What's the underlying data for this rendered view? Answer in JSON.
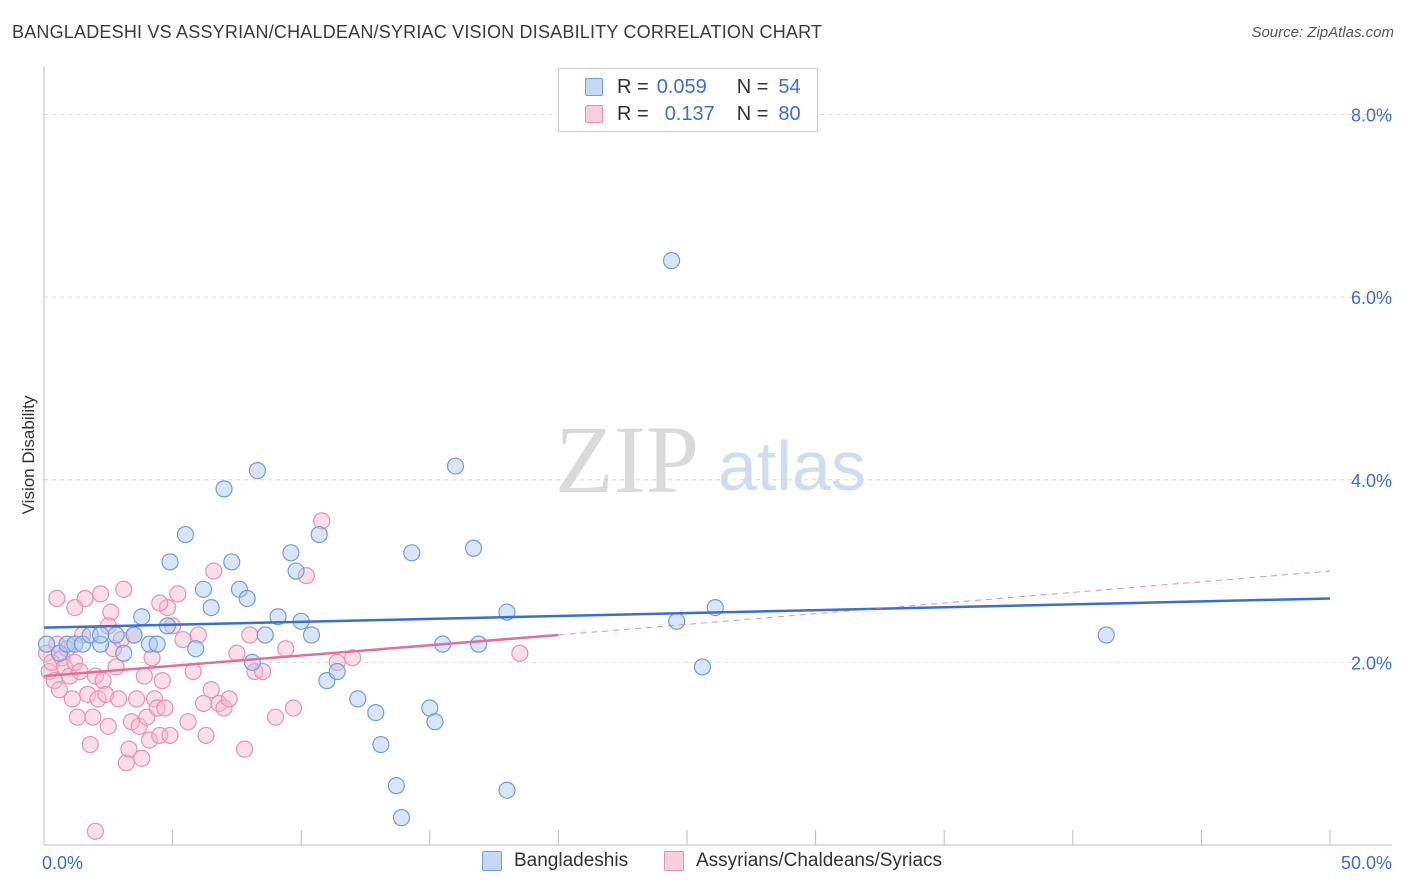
{
  "title": "BANGLADESHI VS ASSYRIAN/CHALDEAN/SYRIAC VISION DISABILITY CORRELATION CHART",
  "source": "Source: ZipAtlas.com",
  "watermark": {
    "zip": "ZIP",
    "atlas": "atlas"
  },
  "colors": {
    "blue": "#3a6fcf",
    "blue_fill": "#aac8f2",
    "blue_stroke": "#6f9ee0",
    "pink": "#e0709a",
    "pink_fill": "#f6b8cc",
    "pink_stroke": "#ec8fb0",
    "grid": "#dcdcdc",
    "axis_text": "#3a6fcf"
  },
  "legend": {
    "rows": [
      {
        "r_label": "R =",
        "r_value": "0.059",
        "n_label": "N =",
        "n_value": "54"
      },
      {
        "r_label": "R =",
        "r_value": "0.137",
        "n_label": "N =",
        "n_value": "80"
      }
    ]
  },
  "bottom_legend": {
    "series1": "Bangladeshis",
    "series2": "Assyrians/Chaldeans/Syriacs"
  },
  "chart_data": {
    "type": "scatter",
    "title": "BANGLADESHI VS ASSYRIAN/CHALDEAN/SYRIAC VISION DISABILITY CORRELATION CHART",
    "xlabel": "",
    "ylabel": "Vision Disability",
    "xlim": [
      0,
      50
    ],
    "ylim": [
      0,
      8.4
    ],
    "x_tick_labels": [
      "0.0%",
      "50.0%"
    ],
    "y_ticks": [
      2,
      4,
      6,
      8
    ],
    "y_tick_labels": [
      "2.0%",
      "4.0%",
      "6.0%",
      "8.0%"
    ],
    "grid": true,
    "legend_position": "top-center",
    "series": [
      {
        "name": "Bangladeshis",
        "R": 0.059,
        "N": 54,
        "trend": {
          "x": [
            0,
            50
          ],
          "y": [
            2.38,
            2.7
          ],
          "dashed_to": 50
        },
        "points": [
          [
            0.1,
            2.2
          ],
          [
            0.6,
            2.1
          ],
          [
            0.9,
            2.2
          ],
          [
            1.2,
            2.2
          ],
          [
            1.5,
            2.2
          ],
          [
            1.8,
            2.3
          ],
          [
            2.2,
            2.2
          ],
          [
            2.8,
            2.3
          ],
          [
            2.2,
            2.3
          ],
          [
            3.1,
            2.1
          ],
          [
            3.5,
            2.3
          ],
          [
            4.1,
            2.2
          ],
          [
            4.4,
            2.2
          ],
          [
            3.8,
            2.5
          ],
          [
            5.9,
            2.15
          ],
          [
            4.8,
            2.4
          ],
          [
            4.9,
            3.1
          ],
          [
            5.5,
            3.4
          ],
          [
            6.2,
            2.8
          ],
          [
            6.5,
            2.6
          ],
          [
            7.0,
            3.9
          ],
          [
            7.3,
            3.1
          ],
          [
            7.6,
            2.8
          ],
          [
            7.9,
            2.7
          ],
          [
            8.1,
            2.0
          ],
          [
            8.3,
            4.1
          ],
          [
            8.6,
            2.3
          ],
          [
            9.1,
            2.5
          ],
          [
            9.6,
            3.2
          ],
          [
            9.8,
            3.0
          ],
          [
            10.0,
            2.45
          ],
          [
            10.4,
            2.3
          ],
          [
            10.7,
            3.4
          ],
          [
            11.0,
            1.8
          ],
          [
            11.4,
            1.9
          ],
          [
            12.2,
            1.6
          ],
          [
            12.9,
            1.45
          ],
          [
            13.1,
            1.1
          ],
          [
            13.7,
            0.65
          ],
          [
            13.9,
            0.3
          ],
          [
            14.3,
            3.2
          ],
          [
            15.0,
            1.5
          ],
          [
            15.2,
            1.35
          ],
          [
            15.5,
            2.2
          ],
          [
            16.0,
            4.15
          ],
          [
            16.7,
            3.25
          ],
          [
            16.9,
            2.2
          ],
          [
            18.0,
            2.55
          ],
          [
            18.0,
            0.6
          ],
          [
            24.4,
            6.4
          ],
          [
            24.6,
            2.45
          ],
          [
            25.6,
            1.95
          ],
          [
            26.1,
            2.6
          ],
          [
            41.3,
            2.3
          ]
        ]
      },
      {
        "name": "Assyrians/Chaldeans/Syriacs",
        "R": 0.137,
        "N": 80,
        "trend": {
          "x": [
            0,
            20
          ],
          "y": [
            1.85,
            2.3
          ],
          "dashed_to": 50,
          "dashed_end_y": 3.0
        },
        "points": [
          [
            0.1,
            2.1
          ],
          [
            0.2,
            1.9
          ],
          [
            0.3,
            2.0
          ],
          [
            0.4,
            1.8
          ],
          [
            0.5,
            2.2
          ],
          [
            0.6,
            1.7
          ],
          [
            0.7,
            2.05
          ],
          [
            0.8,
            1.95
          ],
          [
            0.9,
            2.15
          ],
          [
            1.0,
            1.85
          ],
          [
            1.1,
            1.6
          ],
          [
            1.2,
            2.0
          ],
          [
            1.3,
            1.4
          ],
          [
            1.4,
            1.9
          ],
          [
            1.5,
            2.3
          ],
          [
            1.6,
            2.7
          ],
          [
            1.7,
            1.65
          ],
          [
            1.8,
            1.1
          ],
          [
            1.9,
            1.4
          ],
          [
            2.0,
            1.85
          ],
          [
            2.1,
            1.6
          ],
          [
            2.2,
            2.75
          ],
          [
            2.3,
            1.8
          ],
          [
            2.4,
            1.65
          ],
          [
            2.5,
            1.3
          ],
          [
            2.6,
            2.55
          ],
          [
            2.7,
            2.15
          ],
          [
            2.8,
            1.95
          ],
          [
            2.9,
            1.6
          ],
          [
            3.0,
            2.25
          ],
          [
            3.1,
            2.8
          ],
          [
            3.2,
            0.9
          ],
          [
            3.3,
            1.05
          ],
          [
            3.4,
            1.35
          ],
          [
            3.5,
            2.3
          ],
          [
            3.6,
            1.6
          ],
          [
            3.7,
            1.3
          ],
          [
            3.8,
            0.95
          ],
          [
            3.9,
            1.85
          ],
          [
            4.0,
            1.4
          ],
          [
            4.1,
            1.15
          ],
          [
            4.2,
            2.05
          ],
          [
            4.3,
            1.6
          ],
          [
            4.4,
            1.5
          ],
          [
            4.5,
            1.2
          ],
          [
            4.6,
            1.8
          ],
          [
            4.7,
            1.5
          ],
          [
            4.8,
            2.6
          ],
          [
            4.9,
            1.2
          ],
          [
            5.0,
            2.4
          ],
          [
            5.2,
            2.75
          ],
          [
            5.4,
            2.25
          ],
          [
            5.6,
            1.35
          ],
          [
            5.8,
            1.9
          ],
          [
            6.0,
            2.3
          ],
          [
            6.2,
            1.55
          ],
          [
            6.3,
            1.2
          ],
          [
            6.5,
            1.7
          ],
          [
            6.6,
            3.0
          ],
          [
            6.8,
            1.55
          ],
          [
            7.0,
            1.5
          ],
          [
            7.2,
            1.6
          ],
          [
            7.5,
            2.1
          ],
          [
            7.8,
            1.05
          ],
          [
            8.0,
            2.3
          ],
          [
            8.2,
            1.9
          ],
          [
            8.5,
            1.9
          ],
          [
            9.0,
            1.4
          ],
          [
            9.4,
            2.15
          ],
          [
            9.7,
            1.5
          ],
          [
            10.2,
            2.95
          ],
          [
            10.8,
            3.55
          ],
          [
            11.4,
            2.0
          ],
          [
            12.0,
            2.05
          ],
          [
            0.5,
            2.7
          ],
          [
            1.2,
            2.6
          ],
          [
            2.0,
            0.15
          ],
          [
            2.5,
            2.4
          ],
          [
            4.5,
            2.65
          ],
          [
            18.5,
            2.1
          ]
        ]
      }
    ]
  }
}
